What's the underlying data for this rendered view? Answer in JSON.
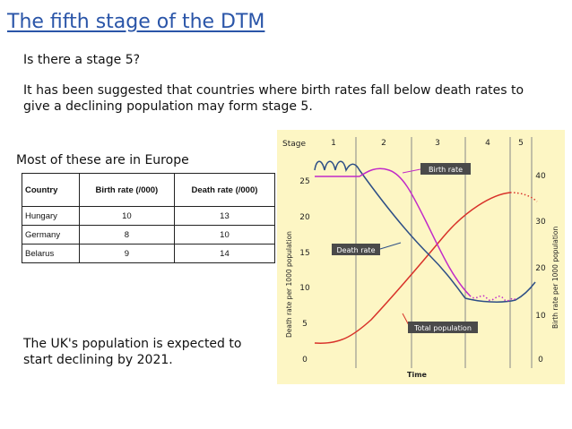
{
  "slide": {
    "title": "The fifth stage of the DTM",
    "question": "Is there a stage 5?",
    "paragraph": "It has been suggested that countries where birth rates fall below death rates to give a declining population may form stage 5.",
    "europe_note": "Most of these are in Europe",
    "uk_note": "The UK's population is expected to start declining by 2021."
  },
  "table": {
    "headers": [
      "Country",
      "Birth rate (/000)",
      "Death rate (/000)"
    ],
    "rows": [
      [
        "Hungary",
        "10",
        "13"
      ],
      [
        "Germany",
        "8",
        "10"
      ],
      [
        "Belarus",
        "9",
        "14"
      ]
    ]
  },
  "graph": {
    "stage_label": "Stage",
    "stages": [
      "1",
      "2",
      "3",
      "4",
      "5"
    ],
    "left_axis_label": "Death rate per 1000 population",
    "right_axis_label": "Birth rate per 1000 population",
    "left_ticks": [
      "0",
      "5",
      "10",
      "15",
      "20",
      "25"
    ],
    "right_ticks": [
      "0",
      "10",
      "20",
      "30",
      "40"
    ],
    "x_label": "Time",
    "labels": {
      "birth": "Birth rate",
      "death": "Death rate",
      "total": "Total population"
    },
    "colors": {
      "background": "#fdf6c4",
      "birth": "#c12ac8",
      "death": "#2e4f86",
      "total": "#d8322a",
      "label_box": "#4a4a4a",
      "divider": "#888888"
    }
  }
}
